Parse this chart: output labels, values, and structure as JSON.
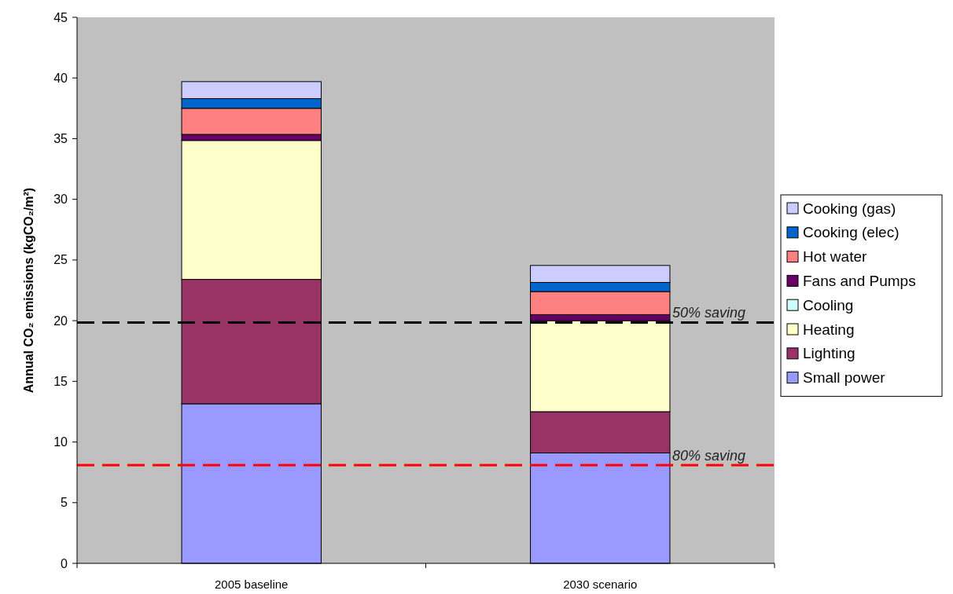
{
  "chart_data": {
    "type": "bar",
    "stacked": true,
    "categories": [
      "2005 baseline",
      "2030 scenario"
    ],
    "ylabel": "Annual CO₂ emissions (kgCO₂/m²)",
    "ylim": [
      0,
      45
    ],
    "yticks": [
      0,
      5,
      10,
      15,
      20,
      25,
      30,
      35,
      40,
      45
    ],
    "grid": false,
    "legend": "right",
    "series": [
      {
        "name": "Small power",
        "color": "#9999ff",
        "values": [
          13.15,
          9.1
        ]
      },
      {
        "name": "Lighting",
        "color": "#993366",
        "values": [
          10.25,
          3.4
        ]
      },
      {
        "name": "Heating",
        "color": "#ffffcc",
        "values": [
          11.45,
          7.5
        ]
      },
      {
        "name": "Cooling",
        "color": "#ccffff",
        "values": [
          0,
          0
        ]
      },
      {
        "name": "Fans and Pumps",
        "color": "#660066",
        "values": [
          0.5,
          0.5
        ]
      },
      {
        "name": "Hot water",
        "color": "#ff8080",
        "values": [
          2.15,
          1.9
        ]
      },
      {
        "name": "Cooking (elec)",
        "color": "#0066cc",
        "values": [
          0.8,
          0.75
        ]
      },
      {
        "name": "Cooking (gas)",
        "color": "#ccccff",
        "values": [
          1.4,
          1.4
        ]
      }
    ],
    "ref_lines": [
      {
        "axis": "y",
        "value": 19.85,
        "label": "50% saving",
        "color": "#000000",
        "line_style": "dashed"
      },
      {
        "axis": "y",
        "value": 8.1,
        "label": "80% saving",
        "color": "#ff0000",
        "line_style": "dashed"
      }
    ]
  }
}
